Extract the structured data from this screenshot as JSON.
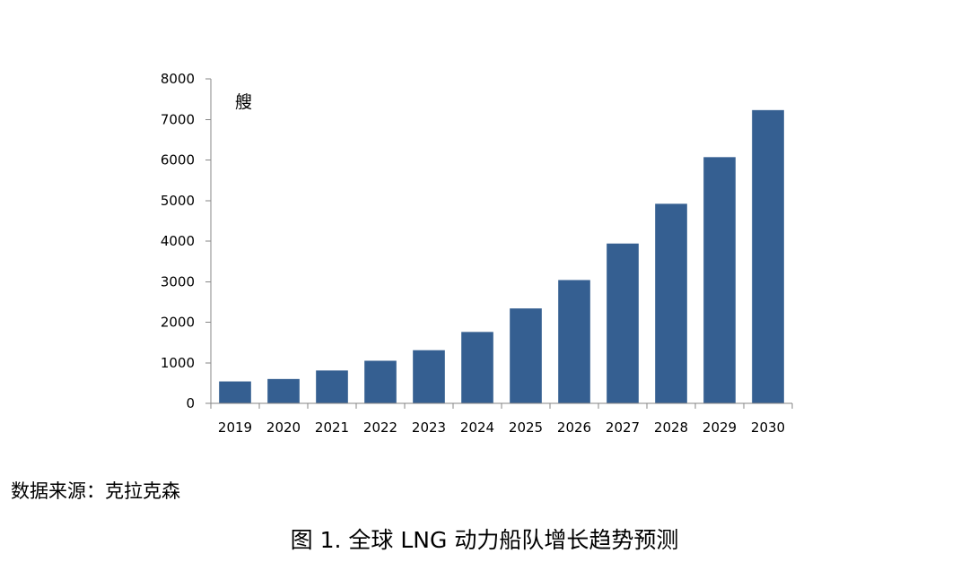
{
  "chart_data": {
    "type": "bar",
    "title": "",
    "xlabel": "",
    "ylabel": "艘",
    "categories": [
      "2019",
      "2020",
      "2021",
      "2022",
      "2023",
      "2024",
      "2025",
      "2026",
      "2027",
      "2028",
      "2029",
      "2030"
    ],
    "values": [
      540,
      600,
      810,
      1050,
      1310,
      1760,
      2340,
      3040,
      3940,
      4920,
      6070,
      7230
    ],
    "ylim": [
      0,
      8000
    ],
    "yticks": [
      0,
      1000,
      2000,
      3000,
      4000,
      5000,
      6000,
      7000,
      8000
    ],
    "bar_color": "#355F91",
    "grid": false,
    "legend": "none"
  },
  "source_note": "数据来源：克拉克森",
  "caption": "图 1. 全球 LNG 动力船队增长趋势预测"
}
